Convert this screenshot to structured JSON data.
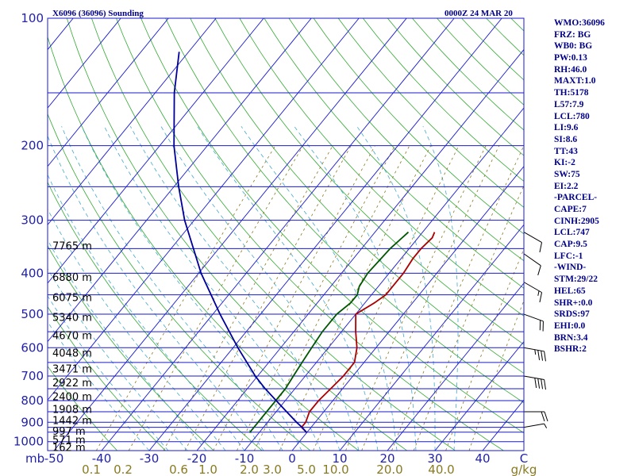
{
  "chart_data": {
    "type": "skew-t sounding",
    "title": "X6096 (36096) Sounding",
    "datetime": "0000Z 24 MAR 20",
    "pressure_axis": {
      "ticks": [
        100,
        200,
        300,
        400,
        500,
        600,
        700,
        800,
        900,
        1000
      ],
      "range_hpa": [
        1050,
        100
      ],
      "label": "mb"
    },
    "temperature_axis": {
      "ticks": [
        -50,
        -40,
        -30,
        -20,
        -10,
        0,
        10,
        20,
        30,
        40
      ],
      "unit_label": "C"
    },
    "mixing_ratio_labels": [
      "0.1",
      "0.2",
      "0.6",
      "1.0",
      "2.0",
      "3.0",
      "5.0",
      "10.0",
      "20.0",
      "40.0"
    ],
    "mixing_ratio_unit": "g/kg",
    "height_labels": [
      {
        "p": 344,
        "text": "7765 m"
      },
      {
        "p": 408,
        "text": "6880 m"
      },
      {
        "p": 456,
        "text": "6075 m"
      },
      {
        "p": 508,
        "text": "5340 m"
      },
      {
        "p": 560,
        "text": "4670 m"
      },
      {
        "p": 616,
        "text": "4048 m"
      },
      {
        "p": 672,
        "text": "3471 m"
      },
      {
        "p": 725,
        "text": "2922 m"
      },
      {
        "p": 782,
        "text": "2400 m"
      },
      {
        "p": 838,
        "text": "1908 m"
      },
      {
        "p": 890,
        "text": "1442 m"
      },
      {
        "p": 942,
        "text": "997 m"
      },
      {
        "p": 988,
        "text": "571 m"
      },
      {
        "p": 1030,
        "text": "162 m"
      }
    ],
    "series": [
      {
        "name": "temperature",
        "points": [
          [
            952,
            0
          ],
          [
            925,
            -2
          ],
          [
            900,
            -2
          ],
          [
            850,
            -3
          ],
          [
            800,
            -3
          ],
          [
            750,
            -2.5
          ],
          [
            700,
            -2
          ],
          [
            650,
            -2
          ],
          [
            600,
            -4
          ],
          [
            550,
            -7
          ],
          [
            500,
            -10
          ],
          [
            470,
            -8
          ],
          [
            450,
            -7
          ],
          [
            400,
            -7
          ],
          [
            370,
            -7.5
          ],
          [
            350,
            -7.5
          ],
          [
            330,
            -7
          ],
          [
            320,
            -7.5
          ]
        ]
      },
      {
        "name": "dewpoint",
        "points": [
          [
            952,
            -12
          ],
          [
            900,
            -12
          ],
          [
            850,
            -12
          ],
          [
            800,
            -12
          ],
          [
            750,
            -12
          ],
          [
            700,
            -12.5
          ],
          [
            650,
            -13
          ],
          [
            600,
            -13.5
          ],
          [
            550,
            -14
          ],
          [
            500,
            -14
          ],
          [
            470,
            -13
          ],
          [
            450,
            -13
          ],
          [
            430,
            -14
          ],
          [
            400,
            -14.5
          ],
          [
            350,
            -14
          ],
          [
            320,
            -13
          ]
        ]
      },
      {
        "name": "parcel",
        "points": [
          [
            952,
            0
          ],
          [
            925,
            -1.9
          ],
          [
            900,
            -3.9
          ],
          [
            850,
            -7.8
          ],
          [
            800,
            -11.9
          ],
          [
            747,
            -16.5
          ],
          [
            700,
            -20.5
          ],
          [
            600,
            -29
          ],
          [
            500,
            -38.5
          ],
          [
            400,
            -49.5
          ],
          [
            300,
            -62
          ],
          [
            250,
            -69
          ],
          [
            200,
            -77
          ],
          [
            150,
            -86
          ],
          [
            120,
            -92
          ]
        ]
      }
    ],
    "wind_barbs": [
      {
        "p": 320,
        "dir": 300,
        "kt": 10
      },
      {
        "p": 360,
        "dir": 305,
        "kt": 10
      },
      {
        "p": 420,
        "dir": 300,
        "kt": 15
      },
      {
        "p": 500,
        "dir": 290,
        "kt": 20
      },
      {
        "p": 600,
        "dir": 280,
        "kt": 35
      },
      {
        "p": 700,
        "dir": 280,
        "kt": 40
      },
      {
        "p": 850,
        "dir": 270,
        "kt": 20
      },
      {
        "p": 925,
        "dir": 260,
        "kt": 5
      }
    ],
    "colors": {
      "frame": "#1a1acc",
      "isobar": "#1a1acc",
      "isotherm": "#1a1acc",
      "dry_adiabat": "#33aa33",
      "moist_adiabat": "#44aacc",
      "mixing_ratio": "#8a7a20",
      "temperature": "#aa0000",
      "dewpoint": "#005500",
      "parcel": "#000099",
      "wind": "#000000"
    }
  },
  "indices": [
    "WMO:36096",
    "FRZ: BG",
    "WB0: BG",
    "PW:0.13",
    "RH:46.0",
    "MAXT:1.0",
    "TH:5178",
    "L57:7.9",
    "LCL:780",
    "LI:9.6",
    "SI:8.6",
    "TT:43",
    "KI:-2",
    "SW:75",
    "EI:2.2",
    "-PARCEL-",
    "CAPE:7",
    "CINH:2905",
    "LCL:747",
    "CAP:9.5",
    "LFC:-1",
    "-WIND-",
    "STM:29/22",
    "HEL:65",
    "SHR+:0.0",
    "SRDS:97",
    "EHI:0.0",
    "BRN:3.4",
    "BSHR:2"
  ]
}
